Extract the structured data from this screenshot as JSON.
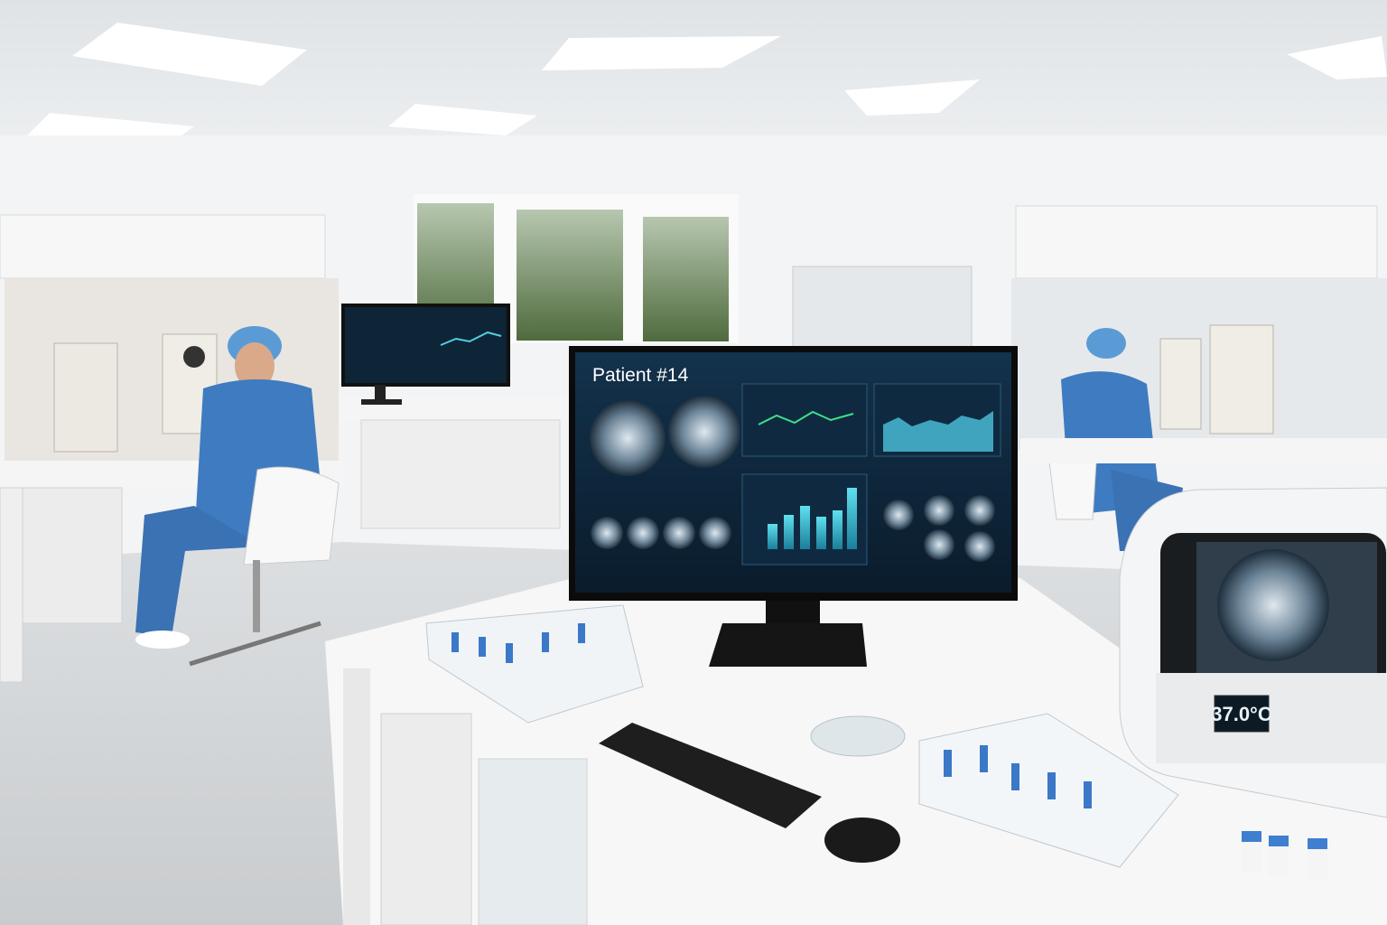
{
  "monitor": {
    "title": "Patient #14"
  },
  "incubator": {
    "temperature": "37.0°C"
  }
}
